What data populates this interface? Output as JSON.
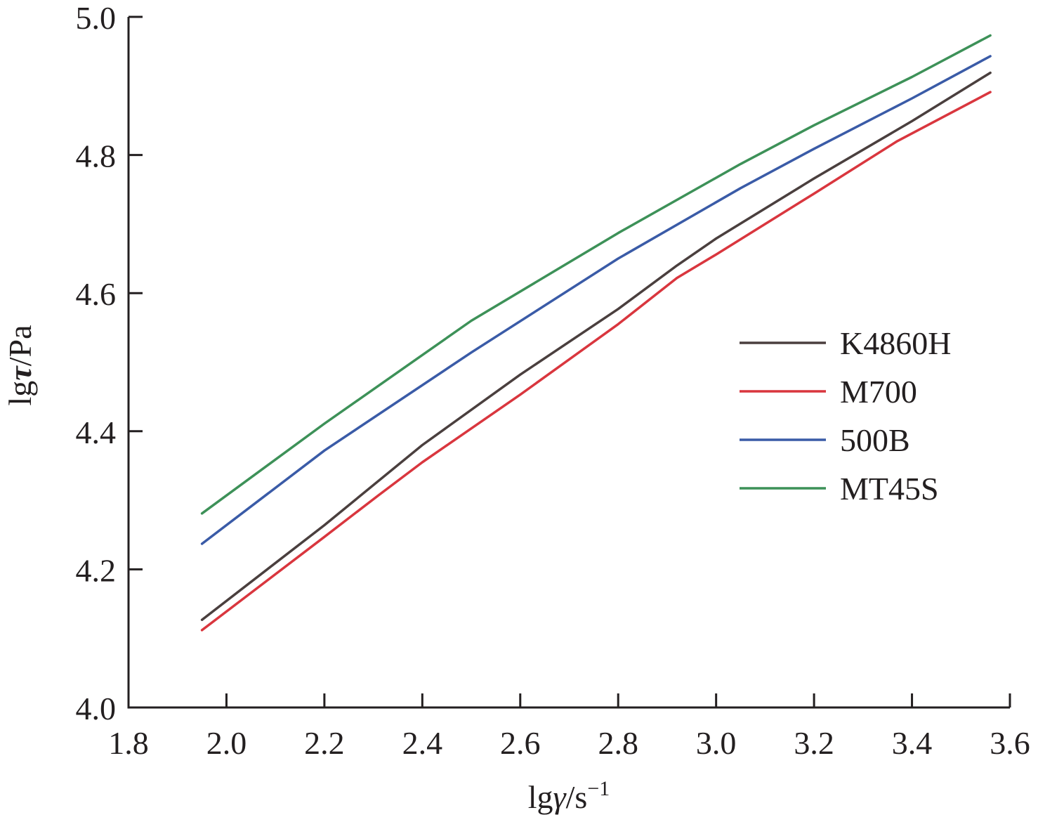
{
  "chart_data": {
    "type": "line",
    "title": "",
    "xlabel": {
      "prefix": "lg",
      "symbol": "γ",
      "unit": "/s",
      "exponent": "−1"
    },
    "ylabel": {
      "prefix": "lg",
      "symbol": "τ",
      "unit": "/Pa"
    },
    "xlim": [
      1.8,
      3.6
    ],
    "ylim": [
      4.0,
      5.0
    ],
    "x_ticks": [
      "1.8",
      "2.0",
      "2.2",
      "2.4",
      "2.6",
      "2.8",
      "3.0",
      "3.2",
      "3.4",
      "3.6"
    ],
    "y_ticks": [
      "4.0",
      "4.2",
      "4.4",
      "4.6",
      "4.8",
      "5.0"
    ],
    "grid": false,
    "legend_position": "right",
    "series": [
      {
        "name": "K4860H",
        "color": "#4a3f3e",
        "x": [
          1.95,
          2.2,
          2.4,
          2.6,
          2.8,
          2.92,
          3.0,
          3.2,
          3.4,
          3.56
        ],
        "y": [
          4.127,
          4.264,
          4.38,
          4.482,
          4.577,
          4.64,
          4.679,
          4.766,
          4.849,
          4.919
        ]
      },
      {
        "name": "M700",
        "color": "#d9363e",
        "x": [
          1.95,
          2.2,
          2.31,
          2.4,
          2.6,
          2.8,
          2.92,
          3.0,
          3.2,
          3.37,
          3.56
        ],
        "y": [
          4.112,
          4.247,
          4.307,
          4.355,
          4.453,
          4.555,
          4.622,
          4.656,
          4.744,
          4.82,
          4.891
        ]
      },
      {
        "name": "500B",
        "color": "#3a5ba7",
        "x": [
          1.95,
          2.2,
          2.5,
          2.8,
          3.05,
          3.2,
          3.4,
          3.56
        ],
        "y": [
          4.237,
          4.372,
          4.514,
          4.65,
          4.752,
          4.809,
          4.882,
          4.943
        ]
      },
      {
        "name": "MT45S",
        "color": "#3d9158",
        "x": [
          1.95,
          2.2,
          2.5,
          2.8,
          3.05,
          3.2,
          3.4,
          3.56
        ],
        "y": [
          4.281,
          4.411,
          4.56,
          4.687,
          4.787,
          4.843,
          4.913,
          4.973
        ]
      }
    ]
  }
}
